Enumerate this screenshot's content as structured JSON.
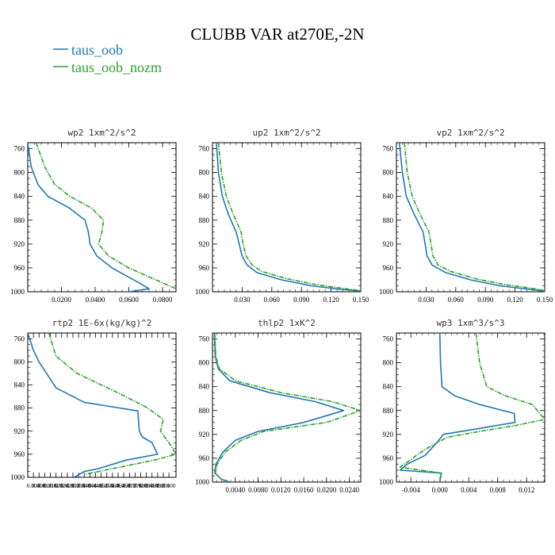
{
  "figure": {
    "title": "CLUBB VAR at270E,-2N",
    "legend": [
      {
        "name": "taus_oob",
        "color": "#1f77b4"
      },
      {
        "name": "taus_oob_nozm",
        "color": "#2ca02c"
      }
    ]
  },
  "chart_data": [
    {
      "type": "line",
      "title": "wp2   1xm^2/s^2",
      "xlim": [
        0.0,
        0.088
      ],
      "ylim": [
        1000,
        750
      ],
      "xticks": [
        0.02,
        0.04,
        0.06,
        0.08
      ],
      "xticklabels": [
        "0.0200",
        "0.0400",
        "0.0600",
        "0.0800"
      ],
      "yticks": [
        760,
        800,
        840,
        880,
        920,
        960,
        1000
      ],
      "series": [
        {
          "name": "taus_oob",
          "color": "#1f77b4",
          "dashed": false,
          "x": [
            0.0,
            0.002,
            0.006,
            0.012,
            0.025,
            0.034,
            0.036,
            0.037,
            0.041,
            0.05,
            0.066,
            0.072,
            0.06
          ],
          "y": [
            750,
            790,
            820,
            840,
            860,
            880,
            900,
            920,
            940,
            960,
            985,
            995,
            1000
          ]
        },
        {
          "name": "taus_oob_nozm",
          "color": "#2ca02c",
          "dashed": true,
          "x": [
            0.005,
            0.01,
            0.016,
            0.025,
            0.038,
            0.045,
            0.044,
            0.042,
            0.048,
            0.06,
            0.08,
            0.088
          ],
          "y": [
            750,
            790,
            820,
            840,
            860,
            880,
            900,
            920,
            940,
            960,
            985,
            995
          ]
        }
      ]
    },
    {
      "type": "line",
      "title": "up2   1xm^2/s^2",
      "xlim": [
        0.0,
        0.15
      ],
      "ylim": [
        1000,
        750
      ],
      "xticks": [
        0.03,
        0.06,
        0.09,
        0.12,
        0.15
      ],
      "xticklabels": [
        "0.030",
        "0.060",
        "0.090",
        "0.120",
        "0.150"
      ],
      "yticks": [
        760,
        800,
        840,
        880,
        920,
        960,
        1000
      ],
      "series": [
        {
          "name": "taus_oob",
          "color": "#1f77b4",
          "dashed": false,
          "x": [
            0.004,
            0.006,
            0.01,
            0.016,
            0.024,
            0.027,
            0.03,
            0.035,
            0.045,
            0.07,
            0.1,
            0.13,
            0.15
          ],
          "y": [
            750,
            800,
            840,
            870,
            900,
            920,
            940,
            955,
            968,
            980,
            990,
            996,
            999
          ]
        },
        {
          "name": "taus_oob_nozm",
          "color": "#2ca02c",
          "dashed": true,
          "x": [
            0.006,
            0.009,
            0.014,
            0.021,
            0.029,
            0.031,
            0.034,
            0.04,
            0.05,
            0.075,
            0.105,
            0.135,
            0.15
          ],
          "y": [
            750,
            800,
            840,
            870,
            900,
            920,
            940,
            955,
            966,
            978,
            988,
            995,
            998
          ]
        }
      ]
    },
    {
      "type": "line",
      "title": "vp2   1xm^2/s^2",
      "xlim": [
        0.0,
        0.15
      ],
      "ylim": [
        1000,
        750
      ],
      "xticks": [
        0.03,
        0.06,
        0.09,
        0.12,
        0.15
      ],
      "xticklabels": [
        "0.030",
        "0.060",
        "0.090",
        "0.120",
        "0.150"
      ],
      "yticks": [
        760,
        800,
        840,
        880,
        920,
        960,
        1000
      ],
      "series": [
        {
          "name": "taus_oob",
          "color": "#1f77b4",
          "dashed": false,
          "x": [
            0.003,
            0.006,
            0.01,
            0.018,
            0.027,
            0.029,
            0.031,
            0.036,
            0.05,
            0.075,
            0.105,
            0.135,
            0.15
          ],
          "y": [
            750,
            800,
            840,
            870,
            900,
            920,
            940,
            955,
            968,
            980,
            990,
            996,
            999
          ]
        },
        {
          "name": "taus_oob_nozm",
          "color": "#2ca02c",
          "dashed": true,
          "x": [
            0.008,
            0.011,
            0.016,
            0.024,
            0.033,
            0.035,
            0.037,
            0.042,
            0.055,
            0.08,
            0.11,
            0.14,
            0.15
          ],
          "y": [
            750,
            800,
            840,
            870,
            900,
            920,
            940,
            955,
            966,
            978,
            988,
            995,
            998
          ]
        }
      ]
    },
    {
      "type": "line",
      "title": "rtp2   1E-6x(kg/kg)^2",
      "xlim": [
        0.0,
        0.105
      ],
      "ylim": [
        1000,
        750
      ],
      "xticks": [
        0.004,
        0.008,
        0.012,
        0.016,
        0.02,
        0.024,
        0.028,
        0.032,
        0.036,
        0.04,
        0.044,
        0.048,
        0.052,
        0.056,
        0.06,
        0.064,
        0.068,
        0.072,
        0.076,
        0.08,
        0.084,
        0.088,
        0.092,
        0.096,
        0.1
      ],
      "xticklabels": [
        "0.004",
        "0.008",
        "0.012",
        "0.016",
        "0.020",
        "0.024",
        "0.028",
        "0.032",
        "0.036",
        "0.040",
        "0.044",
        "0.048",
        "0.052",
        "0.056",
        "0.060",
        "0.064",
        "0.068",
        "0.072",
        "0.076",
        "0.080",
        "0.084",
        "0.088",
        "0.092",
        "0.096",
        "0.100"
      ],
      "yticks": [
        760,
        800,
        840,
        880,
        920,
        960,
        1000
      ],
      "series": [
        {
          "name": "taus_oob",
          "color": "#1f77b4",
          "dashed": false,
          "x": [
            0.0,
            0.004,
            0.008,
            0.02,
            0.04,
            0.078,
            0.079,
            0.081,
            0.088,
            0.092,
            0.07,
            0.05,
            0.04,
            0.033
          ],
          "y": [
            750,
            780,
            800,
            845,
            870,
            885,
            920,
            930,
            940,
            960,
            970,
            985,
            990,
            1000
          ]
        },
        {
          "name": "taus_oob_nozm",
          "color": "#2ca02c",
          "dashed": true,
          "x": [
            0.015,
            0.02,
            0.035,
            0.065,
            0.085,
            0.096,
            0.094,
            0.1,
            0.105,
            0.09,
            0.06,
            0.04
          ],
          "y": [
            750,
            790,
            820,
            855,
            880,
            900,
            920,
            940,
            960,
            970,
            985,
            995
          ]
        }
      ]
    },
    {
      "type": "line",
      "title": "thlp2   1xK^2",
      "xlim": [
        0.0,
        0.026
      ],
      "ylim": [
        1000,
        750
      ],
      "xticks": [
        0.004,
        0.008,
        0.012,
        0.016,
        0.02,
        0.024
      ],
      "xticklabels": [
        "0.0040",
        "0.0080",
        "0.0120",
        "0.0160",
        "0.0200",
        "0.0240"
      ],
      "yticks": [
        760,
        800,
        840,
        880,
        920,
        960,
        1000
      ],
      "series": [
        {
          "name": "taus_oob",
          "color": "#1f77b4",
          "dashed": false,
          "x": [
            0.0003,
            0.0005,
            0.001,
            0.003,
            0.01,
            0.018,
            0.023,
            0.016,
            0.008,
            0.004,
            0.0018,
            0.0006,
            0.0004,
            0.0015,
            0.003
          ],
          "y": [
            750,
            790,
            810,
            830,
            850,
            865,
            880,
            900,
            915,
            930,
            950,
            970,
            985,
            995,
            1000
          ]
        },
        {
          "name": "taus_oob_nozm",
          "color": "#2ca02c",
          "dashed": true,
          "x": [
            0.0004,
            0.0006,
            0.0012,
            0.004,
            0.012,
            0.021,
            0.026,
            0.02,
            0.009,
            0.005,
            0.0022,
            0.0008,
            0.0005,
            0.0015,
            0.0025
          ],
          "y": [
            750,
            790,
            810,
            830,
            850,
            865,
            880,
            900,
            915,
            930,
            950,
            970,
            985,
            995,
            1000
          ]
        }
      ]
    },
    {
      "type": "line",
      "title": "wp3   1xm^3/s^3",
      "xlim": [
        -0.006,
        0.0145
      ],
      "ylim": [
        1000,
        750
      ],
      "xticks": [
        -0.004,
        0.0,
        0.004,
        0.008,
        0.012
      ],
      "xticklabels": [
        "-0.004",
        "0.000",
        "0.004",
        "0.008",
        "0.012"
      ],
      "yticks": [
        760,
        800,
        840,
        880,
        920,
        960,
        1000
      ],
      "series": [
        {
          "name": "taus_oob",
          "color": "#1f77b4",
          "dashed": false,
          "x": [
            0.0,
            0.0001,
            0.0003,
            0.002,
            0.0055,
            0.0103,
            0.0104,
            0.0055,
            0.0005,
            -0.0005,
            -0.002,
            -0.0045,
            -0.0055,
            0.0002,
            0.0
          ],
          "y": [
            750,
            800,
            840,
            855,
            870,
            885,
            900,
            910,
            920,
            935,
            955,
            970,
            980,
            985,
            1000
          ]
        },
        {
          "name": "taus_oob_nozm",
          "color": "#2ca02c",
          "dashed": true,
          "x": [
            0.005,
            0.0055,
            0.0065,
            0.009,
            0.0128,
            0.0145,
            0.0105,
            0.0055,
            0.001,
            -0.002,
            -0.0055,
            0.0002,
            0.0
          ],
          "y": [
            750,
            800,
            840,
            855,
            870,
            895,
            905,
            915,
            925,
            945,
            975,
            985,
            1000
          ]
        }
      ]
    }
  ]
}
